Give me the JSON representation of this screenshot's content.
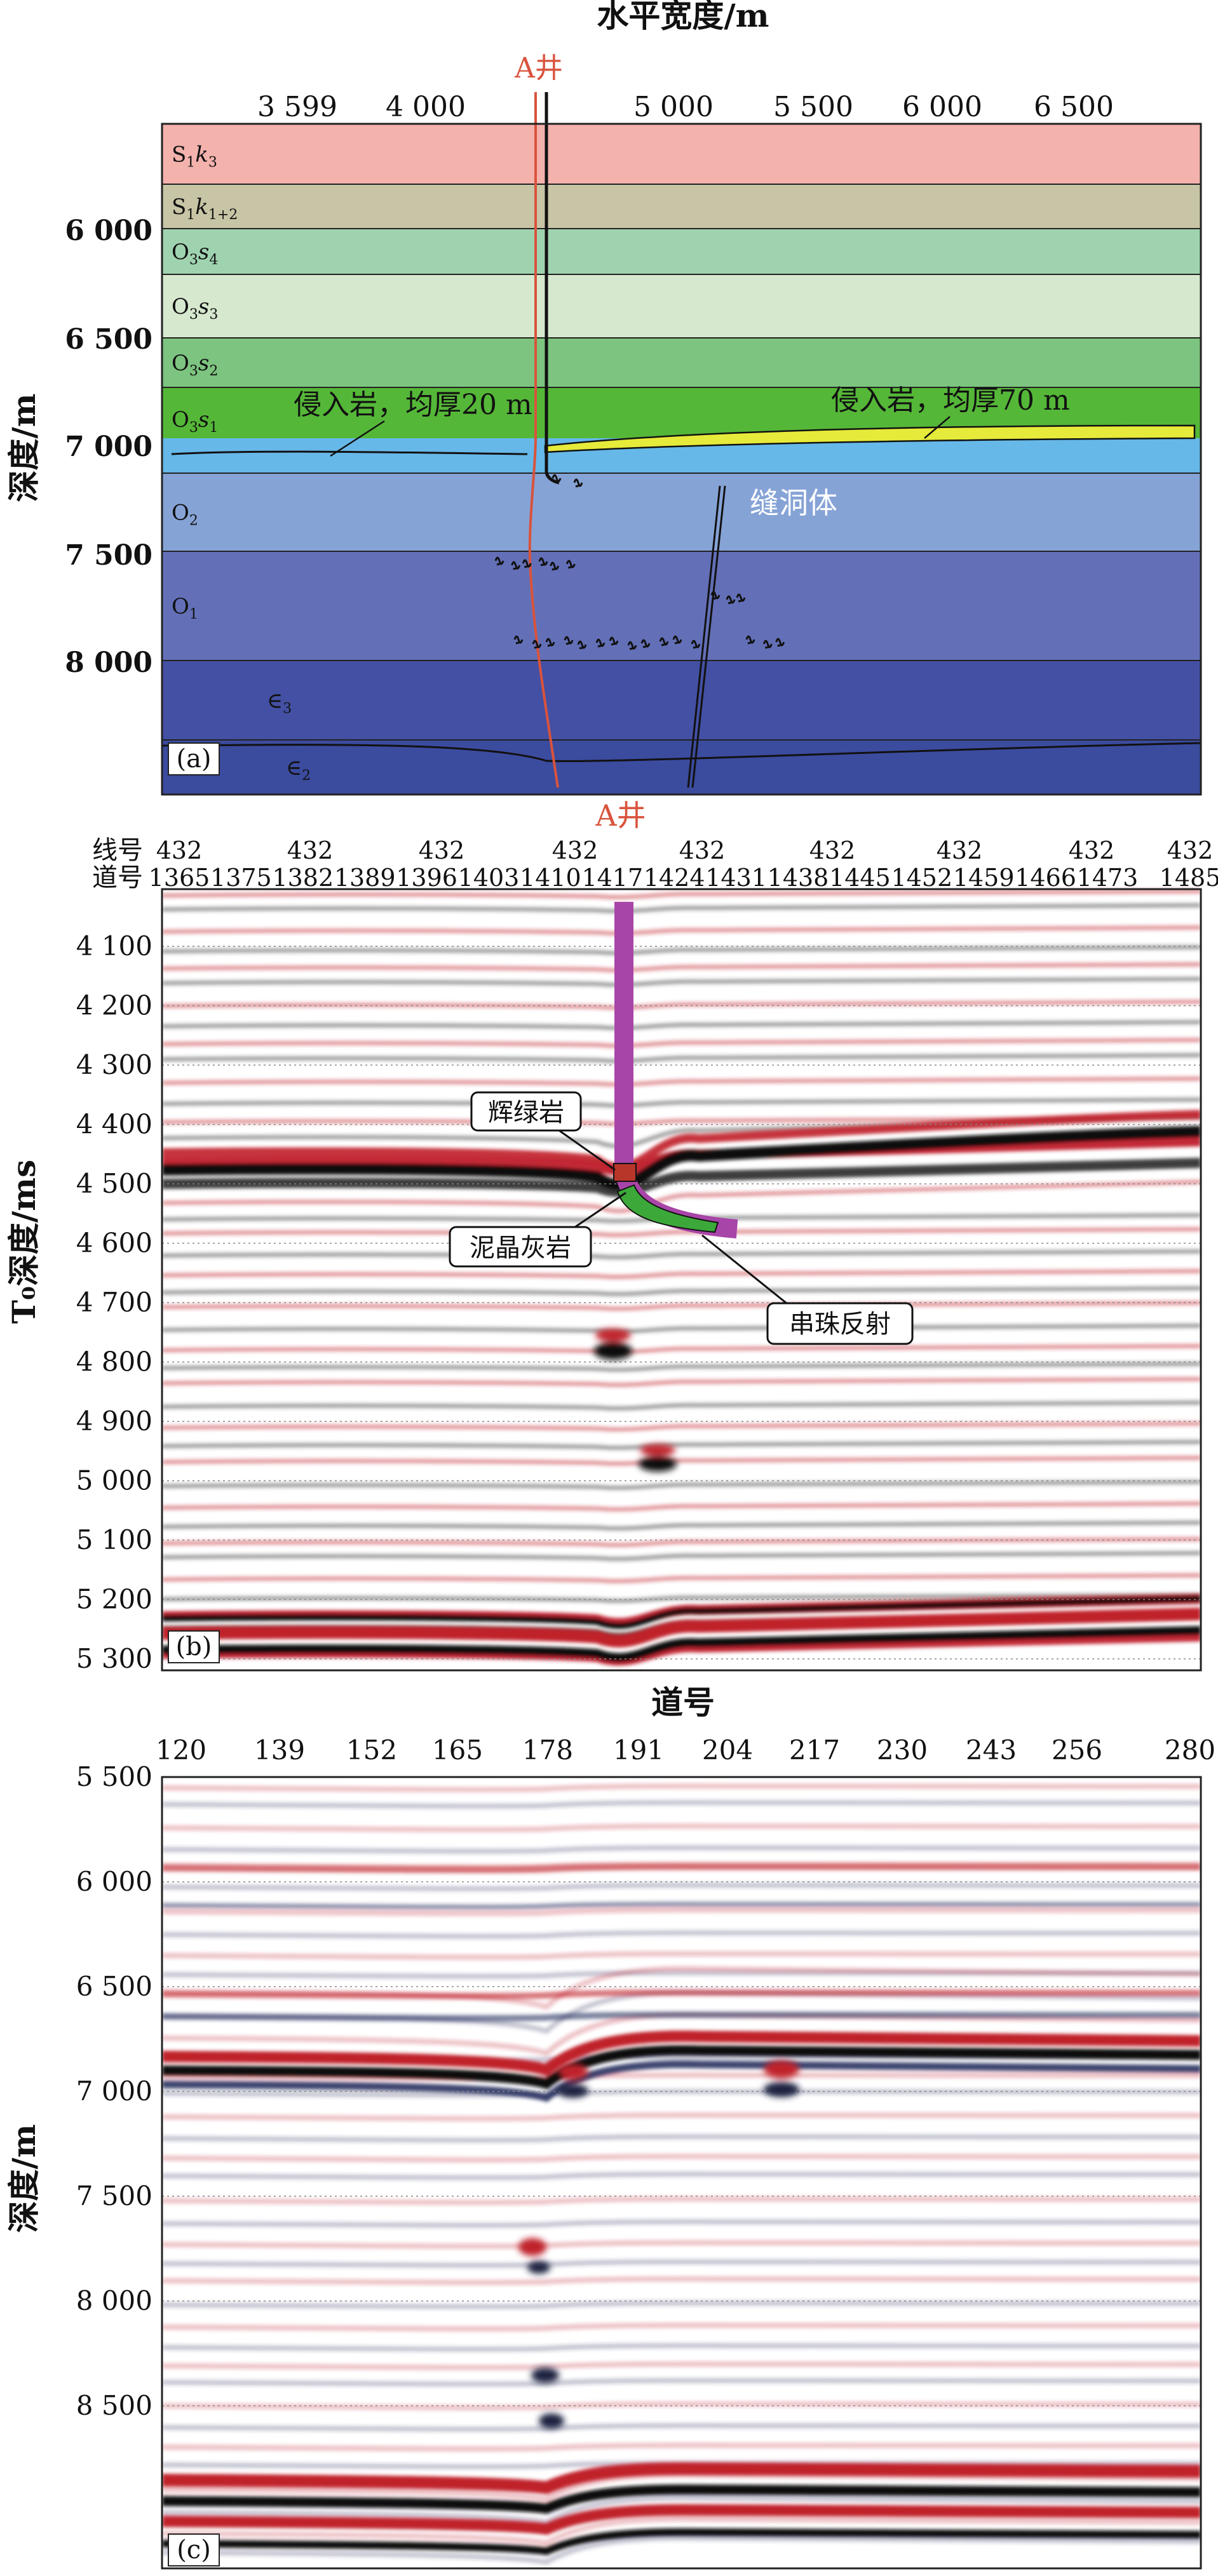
{
  "panel_a": {
    "title": "水平宽度/m",
    "ylabel": "深度/m",
    "x_ticks": [
      "3 599",
      "4 000",
      "5 000",
      "5 500",
      "6 000",
      "6 500"
    ],
    "y_ticks": [
      "6 000",
      "6 500",
      "7 000",
      "7 500",
      "8 000"
    ],
    "well_label": "A井",
    "layers": [
      {
        "id": "s1k3",
        "label_main": "S",
        "label_sub": "1",
        "label_it": "k",
        "label_sub2": "3",
        "color": "#f4b2ad"
      },
      {
        "id": "s1k12",
        "label_main": "S",
        "label_sub": "1",
        "label_it": "k",
        "label_sub2": "1+2",
        "color": "#c8c5a6"
      },
      {
        "id": "o3s4",
        "label_main": "O",
        "label_sub": "3",
        "label_it": "s",
        "label_sub2": "4",
        "color": "#9fd3b0"
      },
      {
        "id": "o3s3",
        "label_main": "O",
        "label_sub": "3",
        "label_it": "s",
        "label_sub2": "3",
        "color": "#d6e8ce"
      },
      {
        "id": "o3s2",
        "label_main": "O",
        "label_sub": "3",
        "label_it": "s",
        "label_sub2": "2",
        "color": "#7cc47f"
      },
      {
        "id": "o3s1",
        "label_main": "O",
        "label_sub": "3",
        "label_it": "s",
        "label_sub2": "1",
        "color": "#55b738"
      },
      {
        "id": "o2",
        "label_main": "O",
        "label_sub": "2",
        "label_it": "",
        "label_sub2": "",
        "color": "#86a3d6"
      },
      {
        "id": "o1",
        "label_main": "O",
        "label_sub": "1",
        "label_it": "",
        "label_sub2": "",
        "color": "#6370b8"
      },
      {
        "id": "e3",
        "label_main": "∈",
        "label_sub": "3",
        "label_it": "",
        "label_sub2": "",
        "color": "#4350a3"
      },
      {
        "id": "e2",
        "label_main": "∈",
        "label_sub": "2",
        "label_it": "",
        "label_sub2": "",
        "color": "#3b4b9e"
      }
    ],
    "annotations": {
      "intrusion_left": "侵入岩，均厚20 m",
      "intrusion_right": "侵入岩，均厚70 m",
      "cave": "缝洞体"
    },
    "panel_label": "(a)"
  },
  "panel_b": {
    "well_label": "A井",
    "row1_label": "线号",
    "row2_label": "道号",
    "line_numbers": [
      "432",
      "432",
      "432",
      "432",
      "432",
      "432",
      "432",
      "432",
      "432"
    ],
    "trace_numbers": [
      "1365",
      "1375",
      "1382",
      "1389",
      "1396",
      "1403",
      "1410",
      "1417",
      "1424",
      "1431",
      "1438",
      "1445",
      "1452",
      "1459",
      "1466",
      "1473",
      "1485"
    ],
    "ylabel": "T₀深度/ms",
    "y_ticks": [
      "4 100",
      "4 200",
      "4 300",
      "4 400",
      "4 500",
      "4 600",
      "4 700",
      "4 800",
      "4 900",
      "5 000",
      "5 100",
      "5 200",
      "5 300"
    ],
    "callouts": {
      "gabbro": "辉绿岩",
      "limestone": "泥晶灰岩",
      "bead": "串珠反射"
    },
    "panel_label": "(b)"
  },
  "panel_c": {
    "title": "道号",
    "x_ticks": [
      "120",
      "139",
      "152",
      "165",
      "178",
      "191",
      "204",
      "217",
      "230",
      "243",
      "256",
      "280"
    ],
    "ylabel": "深度/m",
    "y_ticks": [
      "5 500",
      "6 000",
      "6 500",
      "7 000",
      "7 500",
      "8 000",
      "8 500"
    ],
    "panel_label": "(c)"
  },
  "colors": {
    "seismic_red": "#c0202a",
    "seismic_black": "#111111",
    "well_red": "#d9533c",
    "well_purple": "#a845a8",
    "gabbro_fill": "#b8352a",
    "limestone_fill": "#3da83a"
  }
}
